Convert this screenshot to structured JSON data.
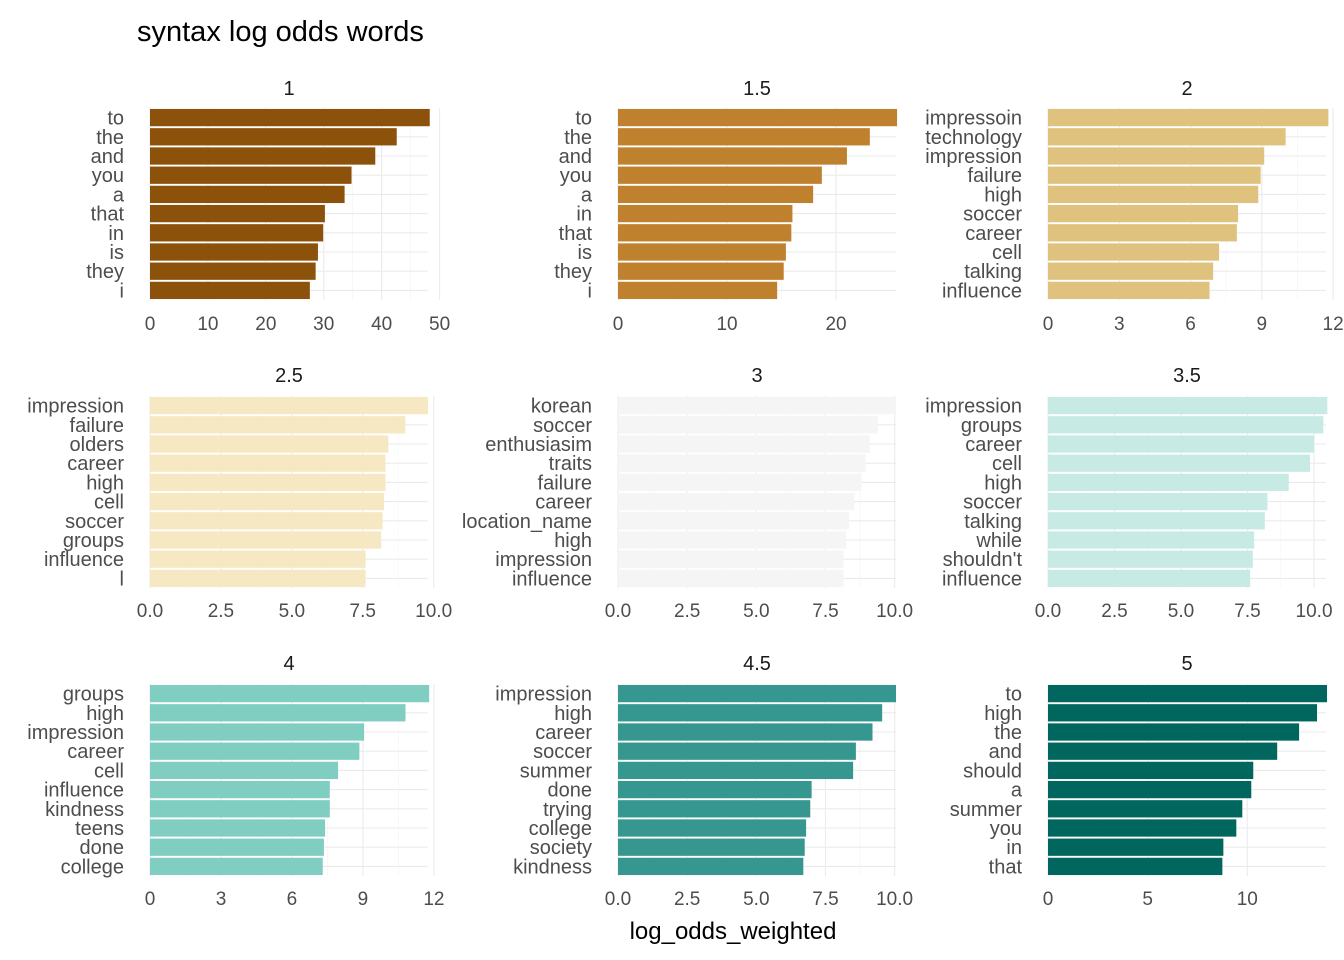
{
  "chart_data": {
    "type": "bar",
    "orientation": "horizontal",
    "title": "syntax log odds words",
    "xlabel": "log_odds_weighted",
    "ylabel": "",
    "grid": true,
    "legend": "none",
    "facets": [
      {
        "label": "1",
        "color": "#8c510a",
        "xlim": [
          0,
          48
        ],
        "xticks": [
          0,
          10,
          20,
          30,
          40,
          50
        ],
        "xtick_labels": [
          "0",
          "10",
          "20",
          "30",
          "40",
          "50"
        ],
        "categories": [
          "to",
          "the",
          "and",
          "you",
          "a",
          "that",
          "in",
          "is",
          "they",
          "i"
        ],
        "values": [
          48.3,
          42.6,
          38.9,
          34.8,
          33.6,
          30.2,
          29.9,
          29.0,
          28.6,
          27.6
        ]
      },
      {
        "label": "1.5",
        "color": "#bf812d",
        "xlim": [
          0,
          25.5
        ],
        "xticks": [
          0,
          10,
          20
        ],
        "xtick_labels": [
          "0",
          "10",
          "20"
        ],
        "categories": [
          "to",
          "the",
          "and",
          "you",
          "a",
          "in",
          "that",
          "is",
          "they",
          "i"
        ],
        "values": [
          25.6,
          23.1,
          21.0,
          18.7,
          17.9,
          16.0,
          15.9,
          15.4,
          15.2,
          14.6
        ]
      },
      {
        "label": "2",
        "color": "#dfc27d",
        "xlim": [
          0,
          11.7
        ],
        "xticks": [
          0,
          3,
          6,
          9,
          12
        ],
        "xtick_labels": [
          "0",
          "3",
          "6",
          "9",
          "12"
        ],
        "categories": [
          "impressoin",
          "technology",
          "impression",
          "failure",
          "high",
          "soccer",
          "career",
          "cell",
          "talking",
          "influence"
        ],
        "values": [
          11.8,
          10.0,
          9.1,
          8.95,
          8.85,
          8.0,
          7.95,
          7.2,
          6.95,
          6.8
        ]
      },
      {
        "label": "2.5",
        "color": "#f6e8c3",
        "xlim": [
          0,
          9.8
        ],
        "xticks": [
          0,
          2.5,
          5,
          7.5,
          10
        ],
        "xtick_labels": [
          "0.0",
          "2.5",
          "5.0",
          "7.5",
          "10.0"
        ],
        "categories": [
          "impression",
          "failure",
          "olders",
          "career",
          "high",
          "cell",
          "soccer",
          "groups",
          "influence",
          "l"
        ],
        "values": [
          9.8,
          9.0,
          8.4,
          8.3,
          8.3,
          8.25,
          8.2,
          8.15,
          7.6,
          7.6
        ]
      },
      {
        "label": "3",
        "color": "#f5f5f5",
        "xlim": [
          0,
          10.05
        ],
        "xticks": [
          0,
          2.5,
          5,
          7.5,
          10
        ],
        "xtick_labels": [
          "0.0",
          "2.5",
          "5.0",
          "7.5",
          "10.0"
        ],
        "categories": [
          "korean",
          "soccer",
          "enthusiasim",
          "traits",
          "failure",
          "career",
          "location_name",
          "high",
          "impression",
          "influence"
        ],
        "values": [
          10.05,
          9.4,
          9.1,
          8.95,
          8.8,
          8.55,
          8.35,
          8.25,
          8.15,
          8.15
        ]
      },
      {
        "label": "3.5",
        "color": "#c7eae5",
        "xlim": [
          0,
          10.45
        ],
        "xticks": [
          0,
          2.5,
          5,
          7.5,
          10
        ],
        "xtick_labels": [
          "0.0",
          "2.5",
          "5.0",
          "7.5",
          "10.0"
        ],
        "categories": [
          "impression",
          "groups",
          "career",
          "cell",
          "high",
          "soccer",
          "talking",
          "while",
          "shouldn't",
          "influence"
        ],
        "values": [
          10.5,
          10.35,
          10.0,
          9.85,
          9.05,
          8.25,
          8.15,
          7.75,
          7.7,
          7.6
        ]
      },
      {
        "label": "4",
        "color": "#80cdc1",
        "xlim": [
          0,
          11.75
        ],
        "xticks": [
          0,
          3,
          6,
          9,
          12
        ],
        "xtick_labels": [
          "0",
          "3",
          "6",
          "9",
          "12"
        ],
        "categories": [
          "groups",
          "high",
          "impression",
          "career",
          "cell",
          "influence",
          "kindness",
          "teens",
          "done",
          "college"
        ],
        "values": [
          11.8,
          10.8,
          9.05,
          8.85,
          7.95,
          7.6,
          7.6,
          7.4,
          7.35,
          7.3
        ]
      },
      {
        "label": "4.5",
        "color": "#35978f",
        "xlim": [
          0,
          10.05
        ],
        "xticks": [
          0,
          2.5,
          5,
          7.5,
          10
        ],
        "xtick_labels": [
          "0.0",
          "2.5",
          "5.0",
          "7.5",
          "10.0"
        ],
        "categories": [
          "impression",
          "high",
          "career",
          "soccer",
          "summer",
          "done",
          "trying",
          "college",
          "society",
          "kindness"
        ],
        "values": [
          10.05,
          9.55,
          9.2,
          8.6,
          8.5,
          7.0,
          6.95,
          6.8,
          6.75,
          6.7
        ]
      },
      {
        "label": "5",
        "color": "#01665e",
        "xlim": [
          0,
          13.95
        ],
        "xticks": [
          0,
          5,
          10
        ],
        "xtick_labels": [
          "0",
          "5",
          "10"
        ],
        "categories": [
          "to",
          "high",
          "the",
          "and",
          "should",
          "a",
          "summer",
          "you",
          "in",
          "that"
        ],
        "values": [
          14.0,
          13.5,
          12.6,
          11.5,
          10.3,
          10.2,
          9.75,
          9.45,
          8.8,
          8.75
        ]
      }
    ]
  }
}
